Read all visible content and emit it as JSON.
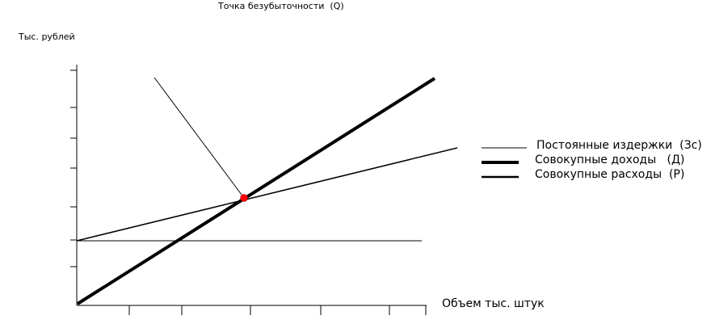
{
  "title": "Точка безубыточности  (Q)",
  "y_axis_label": "Тыс. рублей",
  "x_axis_label": "Объем тыс. штук",
  "legend": [
    {
      "label": "Постоянные издержки  (Зс)"
    },
    {
      "label": "Совокупные доходы   (Д)"
    },
    {
      "label": "Совокупные расходы  (Р)"
    }
  ]
}
